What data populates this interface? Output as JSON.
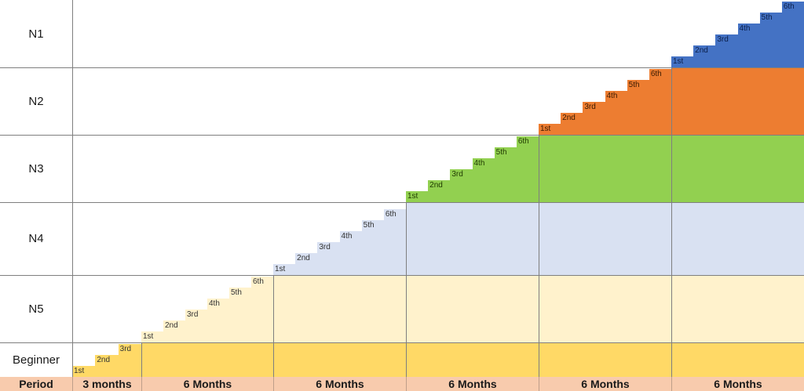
{
  "levels": [
    {
      "label": "N1",
      "color": "#4472c4",
      "text_color": "#0b1f4a"
    },
    {
      "label": "N2",
      "color": "#ed7d31",
      "text_color": "#3a1a00"
    },
    {
      "label": "N3",
      "color": "#92d050",
      "text_color": "#1f3a00"
    },
    {
      "label": "N4",
      "color": "#d9e1f2",
      "text_color": "#333333"
    },
    {
      "label": "N5",
      "color": "#fff2cc",
      "text_color": "#333333"
    },
    {
      "label": "Beginner",
      "color": "#ffd966",
      "text_color": "#333333"
    }
  ],
  "beginner_steps": [
    "1st",
    "2nd",
    "3rd"
  ],
  "steps": [
    "1st",
    "2nd",
    "3rd",
    "4th",
    "5th",
    "6th"
  ],
  "period_label": "Period",
  "periods": [
    "3 months",
    "6 Months",
    "6 Months",
    "6 Months",
    "6 Months",
    "6 Months"
  ]
}
